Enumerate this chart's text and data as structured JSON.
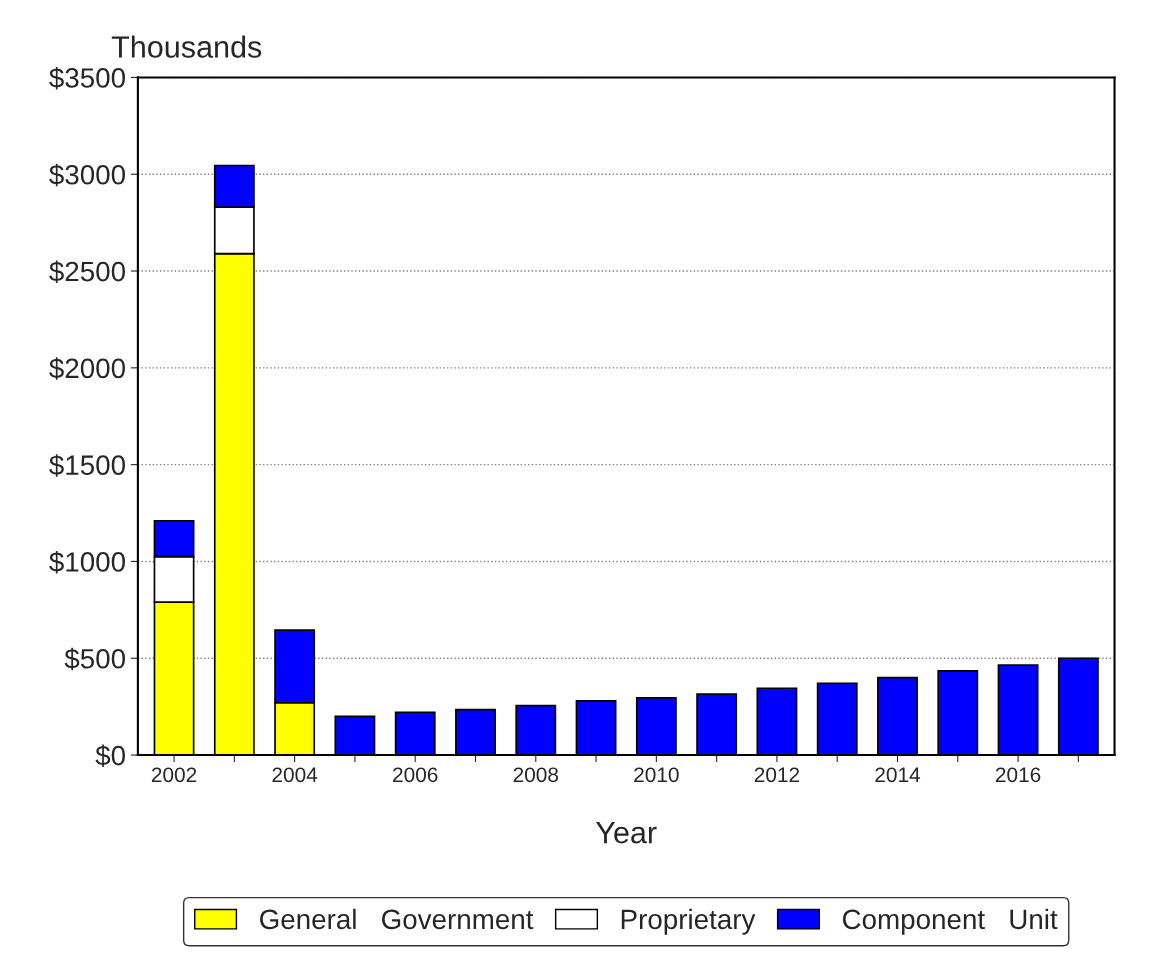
{
  "chart_data": {
    "type": "bar",
    "stacked": true,
    "ylabel": "Thousands",
    "xlabel": "Year",
    "categories": [
      "2002",
      null,
      "2004",
      null,
      "2006",
      null,
      "2008",
      null,
      "2010",
      null,
      "2012",
      null,
      "2014",
      null,
      "2016",
      null
    ],
    "series": [
      {
        "name": "General   Government",
        "color": "#ffff00",
        "values": [
          790,
          2590,
          270,
          null,
          null,
          null,
          null,
          null,
          null,
          null,
          null,
          null,
          null,
          null,
          null,
          null
        ]
      },
      {
        "name": "Proprietary",
        "color": "#ffffff",
        "values": [
          235,
          240,
          null,
          null,
          null,
          null,
          null,
          null,
          null,
          null,
          null,
          null,
          null,
          null,
          null,
          null
        ]
      },
      {
        "name": "Component   Unit",
        "color": "#0000ff",
        "values": [
          185,
          215,
          375,
          200,
          220,
          235,
          255,
          280,
          295,
          315,
          345,
          370,
          400,
          435,
          465,
          500
        ]
      }
    ],
    "ylim": [
      0,
      3500
    ],
    "yticks": [
      {
        "value": 0,
        "label": "$0"
      },
      {
        "value": 500,
        "label": "$500"
      },
      {
        "value": 1000,
        "label": "$1000"
      },
      {
        "value": 1500,
        "label": "$1500"
      },
      {
        "value": 2000,
        "label": "$2000"
      },
      {
        "value": 2500,
        "label": "$2500"
      },
      {
        "value": 3000,
        "label": "$3000"
      },
      {
        "value": 3500,
        "label": "$3500"
      }
    ],
    "grid": "y",
    "legend": "bottom"
  }
}
